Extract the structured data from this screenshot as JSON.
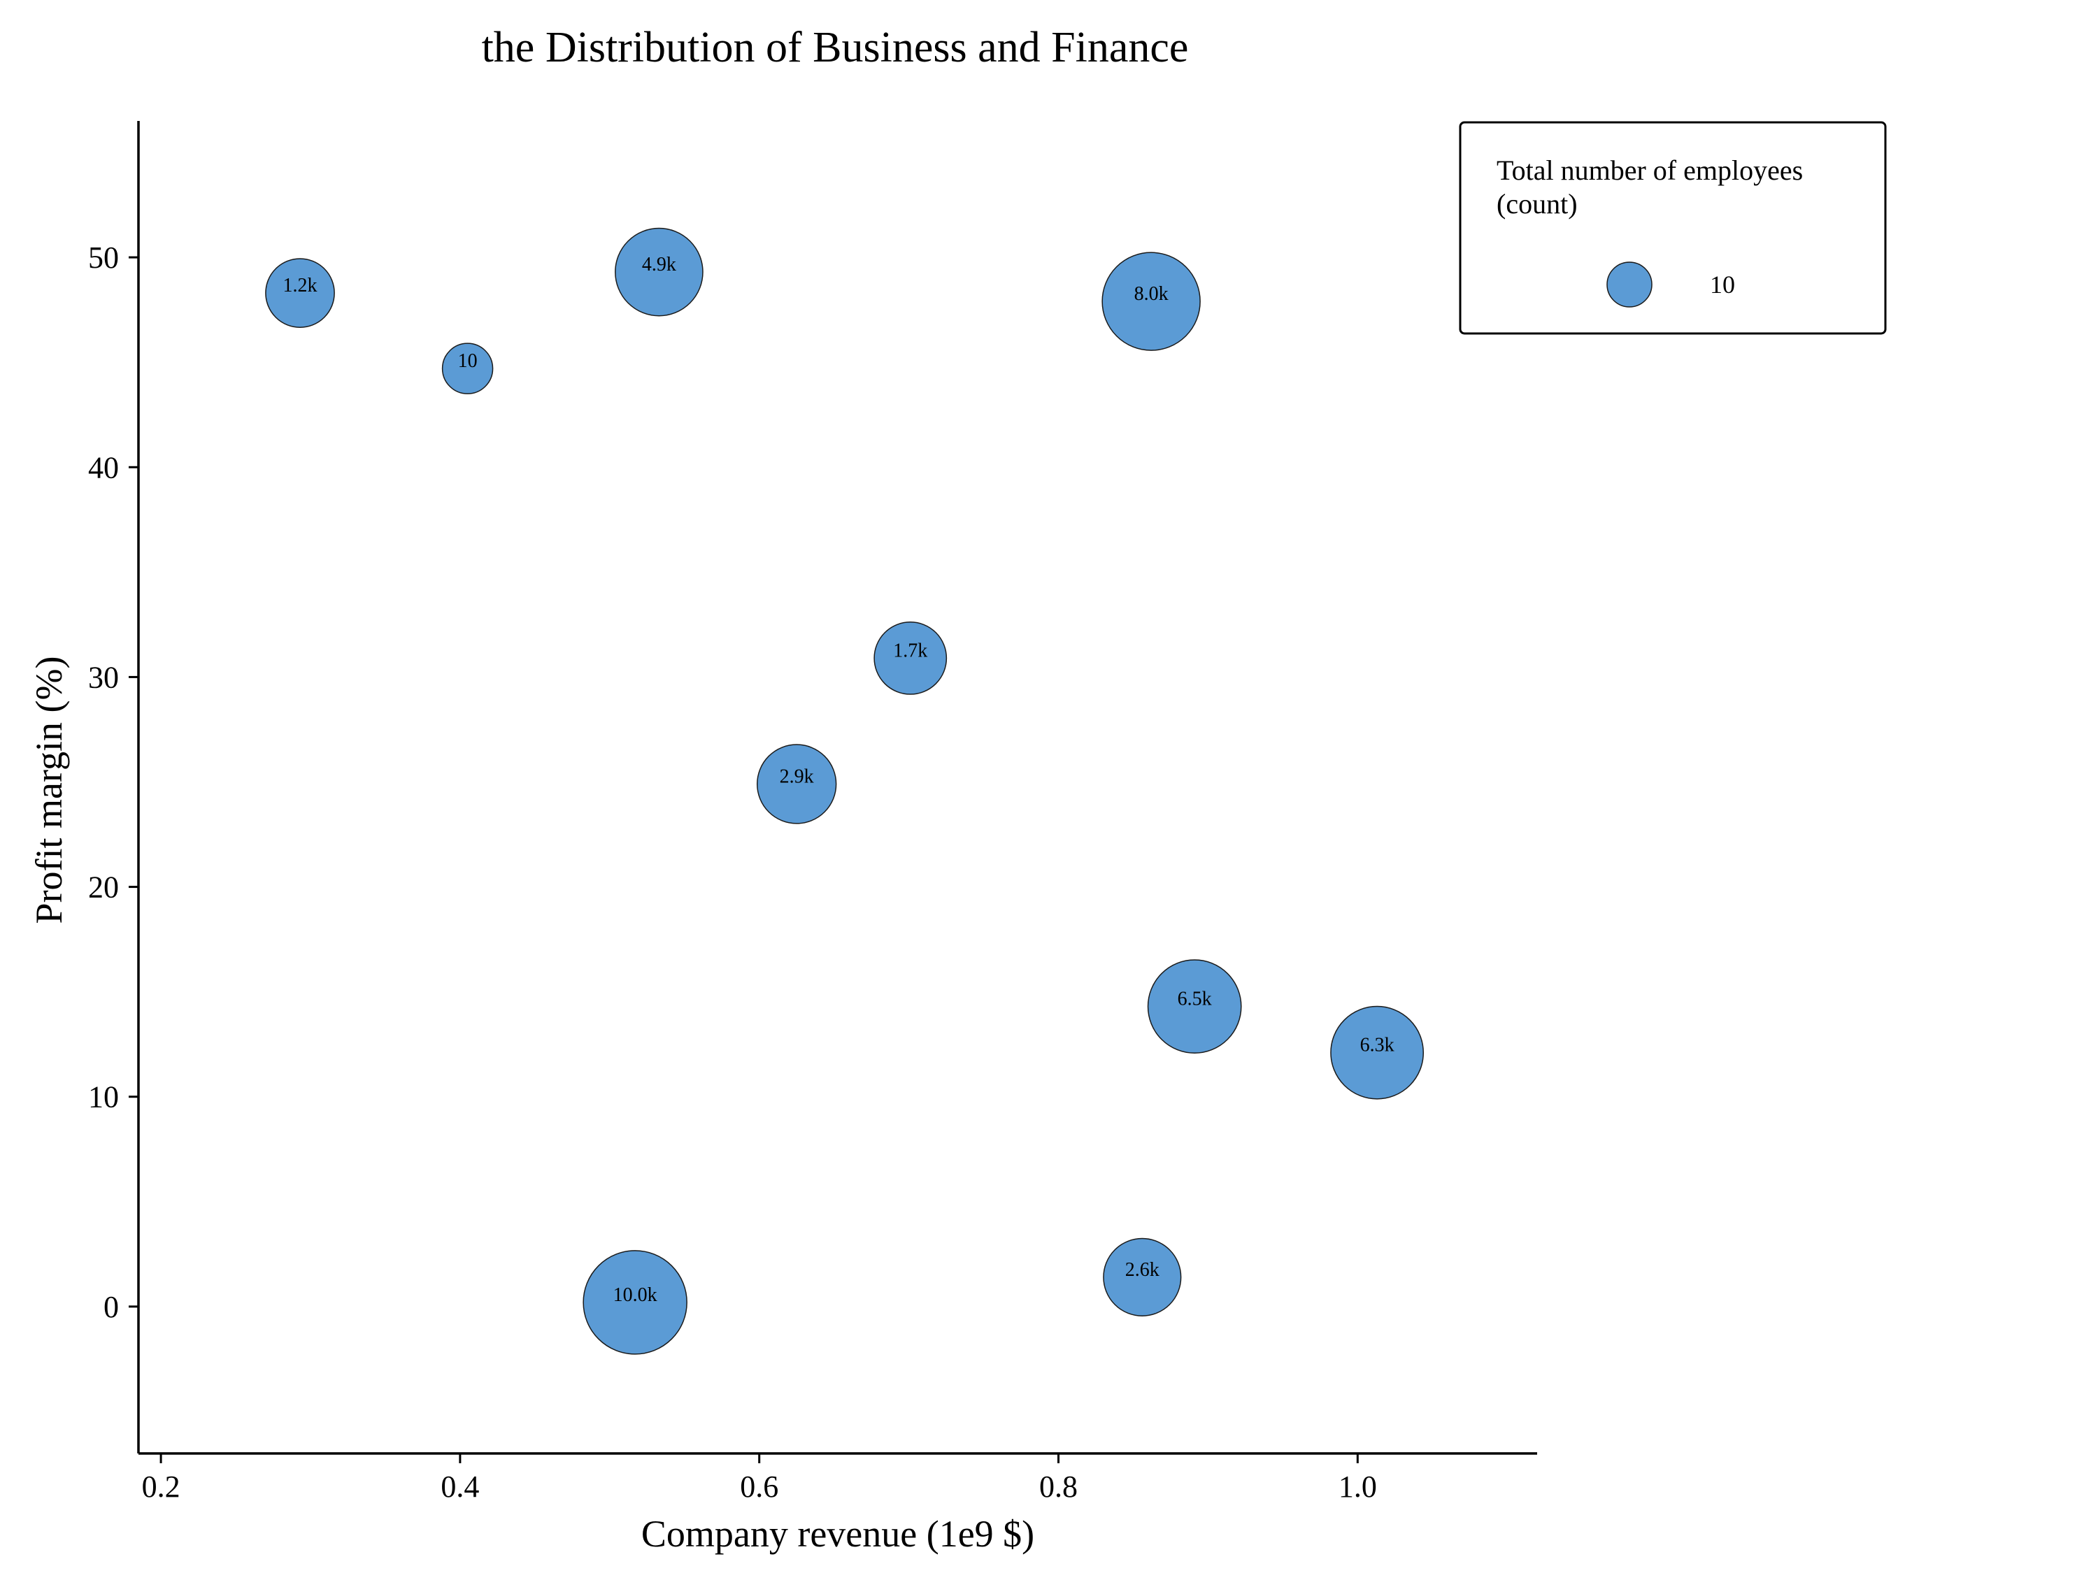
{
  "chart_data": {
    "type": "scatter",
    "title": "the Distribution of Business and Finance",
    "xlabel": "Company revenue (1e9 $)",
    "ylabel": "Profit margin (%)",
    "xlim": [
      0.185,
      1.12
    ],
    "ylim": [
      -7,
      56.5
    ],
    "xticks": [
      0.2,
      0.4,
      0.6,
      0.8,
      1.0
    ],
    "xtick_labels": [
      "0.2",
      "0.4",
      "0.6",
      "0.8",
      "1.0"
    ],
    "yticks": [
      0,
      10,
      20,
      30,
      40,
      50
    ],
    "ytick_labels": [
      "0",
      "10",
      "20",
      "30",
      "40",
      "50"
    ],
    "grid": false,
    "bubble_color": "#5b9bd5",
    "bubble_edge_color": "#1a1a1a",
    "size_variable": "Total number of employees (count)",
    "points": [
      {
        "x": 0.293,
        "y": 48.3,
        "size": 1200,
        "label": "1.2k"
      },
      {
        "x": 0.405,
        "y": 44.7,
        "size": 10,
        "label": "10"
      },
      {
        "x": 0.533,
        "y": 49.3,
        "size": 4900,
        "label": "4.9k"
      },
      {
        "x": 0.862,
        "y": 47.9,
        "size": 8000,
        "label": "8.0k"
      },
      {
        "x": 0.701,
        "y": 30.9,
        "size": 1700,
        "label": "1.7k"
      },
      {
        "x": 0.625,
        "y": 24.9,
        "size": 2900,
        "label": "2.9k"
      },
      {
        "x": 0.891,
        "y": 14.3,
        "size": 6500,
        "label": "6.5k"
      },
      {
        "x": 1.013,
        "y": 12.1,
        "size": 6300,
        "label": "6.3k"
      },
      {
        "x": 0.517,
        "y": 0.2,
        "size": 10000,
        "label": "10.0k"
      },
      {
        "x": 0.856,
        "y": 1.4,
        "size": 2600,
        "label": "2.6k"
      }
    ],
    "legend": {
      "title_line1": "Total number of employees",
      "title_line2": "(count)",
      "item_label": "10",
      "placement": "top-right"
    }
  }
}
